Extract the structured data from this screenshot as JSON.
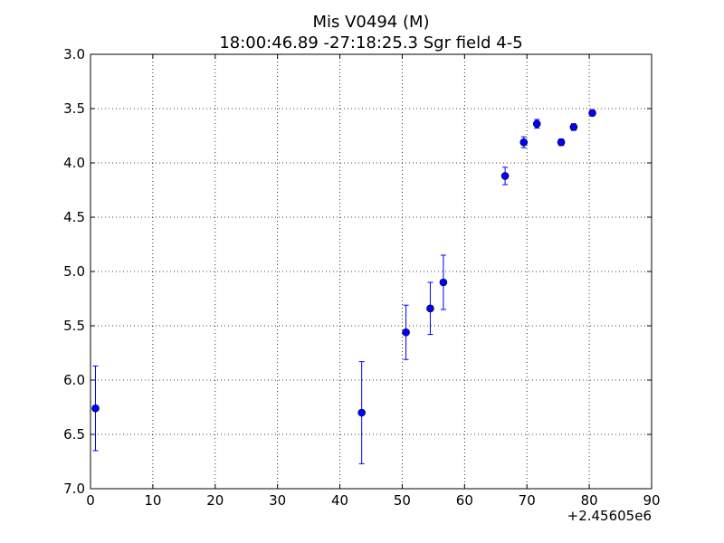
{
  "chart_data": {
    "type": "scatter",
    "title": "Mis V0494  (M)",
    "subtitle": "18:00:46.89 -27:18:25.3 Sgr field 4-5",
    "xlabel": "",
    "ylabel": "",
    "x_offset_label": "+2.45605e6",
    "xlim": [
      0,
      90
    ],
    "ylim": [
      7.0,
      3.0
    ],
    "y_inverted": true,
    "x_ticks": [
      0,
      10,
      20,
      30,
      40,
      50,
      60,
      70,
      80,
      90
    ],
    "x_tick_labels": [
      "0",
      "10",
      "20",
      "30",
      "40",
      "50",
      "60",
      "70",
      "80",
      "90"
    ],
    "y_ticks": [
      3.0,
      3.5,
      4.0,
      4.5,
      5.0,
      5.5,
      6.0,
      6.5,
      7.0
    ],
    "y_tick_labels": [
      "3.0",
      "3.5",
      "4.0",
      "4.5",
      "5.0",
      "5.5",
      "6.0",
      "6.5",
      "7.0"
    ],
    "grid": true,
    "marker_color": "#0000ff",
    "points": [
      {
        "x": 0.8,
        "y": 6.26,
        "err": 0.39
      },
      {
        "x": 43.5,
        "y": 6.3,
        "err": 0.47
      },
      {
        "x": 50.6,
        "y": 5.56,
        "err": 0.25
      },
      {
        "x": 54.5,
        "y": 5.34,
        "err": 0.24
      },
      {
        "x": 56.6,
        "y": 5.1,
        "err": 0.25
      },
      {
        "x": 66.5,
        "y": 4.12,
        "err": 0.08
      },
      {
        "x": 69.5,
        "y": 3.81,
        "err": 0.05
      },
      {
        "x": 71.6,
        "y": 3.64,
        "err": 0.04
      },
      {
        "x": 75.5,
        "y": 3.81,
        "err": 0.03
      },
      {
        "x": 77.5,
        "y": 3.67,
        "err": 0.03
      },
      {
        "x": 80.5,
        "y": 3.54,
        "err": 0.02
      }
    ]
  }
}
